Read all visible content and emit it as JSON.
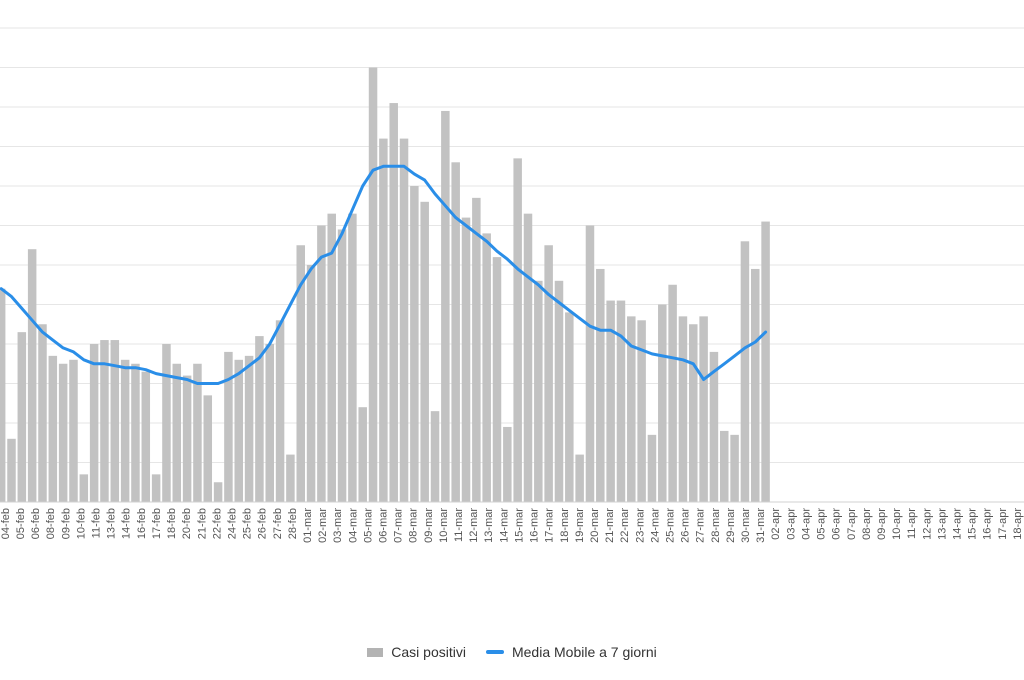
{
  "chart_data": {
    "type": "bar",
    "title": "",
    "xlabel": "",
    "ylabel": "",
    "grid": true,
    "legend_position": "bottom",
    "ylim": [
      0,
      12
    ],
    "series": [
      {
        "name": "Casi positivi",
        "type": "bar",
        "color": "#c2c2c2",
        "values": [
          5.4,
          1.6,
          4.3,
          6.4,
          4.5,
          3.7,
          3.5,
          3.6,
          0.7,
          4.0,
          4.1,
          4.1,
          3.6,
          3.5,
          3.3,
          0.7,
          4.0,
          3.5,
          3.2,
          3.5,
          2.7,
          0.5,
          3.8,
          3.6,
          3.7,
          4.2,
          4.0,
          4.6,
          1.2,
          6.5,
          6.0,
          7.0,
          7.3,
          6.9,
          7.3,
          2.4,
          11.0,
          9.2,
          10.1,
          9.2,
          8.0,
          7.6,
          2.3,
          9.9,
          8.6,
          7.2,
          7.7,
          6.8,
          6.2,
          1.9,
          8.7,
          7.3,
          5.6,
          6.5,
          5.6,
          4.8,
          1.2,
          7.0,
          5.9,
          5.1,
          5.1,
          4.7,
          4.6,
          1.7,
          5.0,
          5.5,
          4.7,
          4.5,
          4.7,
          3.8,
          1.8,
          1.7,
          6.6,
          5.9,
          7.1
        ]
      },
      {
        "name": "Media Mobile a 7 giorni",
        "type": "line",
        "color": "#2a8ee8",
        "values": [
          5.4,
          5.2,
          4.9,
          4.6,
          4.3,
          4.1,
          3.9,
          3.8,
          3.6,
          3.5,
          3.5,
          3.45,
          3.4,
          3.4,
          3.35,
          3.25,
          3.2,
          3.15,
          3.1,
          3.0,
          3.0,
          3.0,
          3.1,
          3.25,
          3.45,
          3.65,
          4.0,
          4.5,
          5.0,
          5.5,
          5.9,
          6.2,
          6.3,
          6.8,
          7.4,
          8.0,
          8.4,
          8.5,
          8.5,
          8.5,
          8.3,
          8.15,
          7.8,
          7.5,
          7.2,
          7.0,
          6.8,
          6.6,
          6.35,
          6.15,
          5.9,
          5.7,
          5.5,
          5.25,
          5.05,
          4.85,
          4.65,
          4.45,
          4.35,
          4.35,
          4.2,
          3.95,
          3.85,
          3.75,
          3.7,
          3.65,
          3.6,
          3.5,
          3.1,
          3.3,
          3.5,
          3.7,
          3.9,
          4.05,
          4.3
        ]
      }
    ],
    "visible_date_labels": [
      "04-feb",
      "05-feb",
      "06-feb",
      "08-feb",
      "09-feb",
      "10-feb",
      "11-feb",
      "13-feb",
      "14-feb",
      "16-feb",
      "17-feb",
      "18-feb",
      "20-feb",
      "21-feb",
      "22-feb",
      "24-feb",
      "25-feb",
      "26-feb",
      "27-feb",
      "28-feb",
      "01-mar",
      "02-mar",
      "03-mar",
      "04-mar",
      "05-mar",
      "06-mar",
      "07-mar",
      "08-mar",
      "09-mar",
      "10-mar",
      "11-mar",
      "12-mar",
      "13-mar",
      "14-mar",
      "15-mar",
      "16-mar",
      "17-mar",
      "18-mar",
      "19-mar",
      "20-mar",
      "21-mar",
      "22-mar",
      "23-mar",
      "24-mar",
      "25-mar",
      "26-mar",
      "27-mar",
      "28-mar",
      "29-mar",
      "30-mar",
      "31-mar",
      "02-apr",
      "03-apr",
      "04-apr",
      "05-apr",
      "06-apr",
      "07-apr",
      "08-apr",
      "09-apr",
      "10-apr",
      "11-apr",
      "12-apr",
      "13-apr",
      "14-apr",
      "15-apr",
      "16-apr",
      "17-apr",
      "18-apr"
    ]
  },
  "legend": {
    "items": [
      {
        "label": "Casi positivi",
        "color": "#b3b3b3"
      },
      {
        "label": "Media Mobile a 7 giorni",
        "color": "#2a8ee8"
      }
    ]
  }
}
